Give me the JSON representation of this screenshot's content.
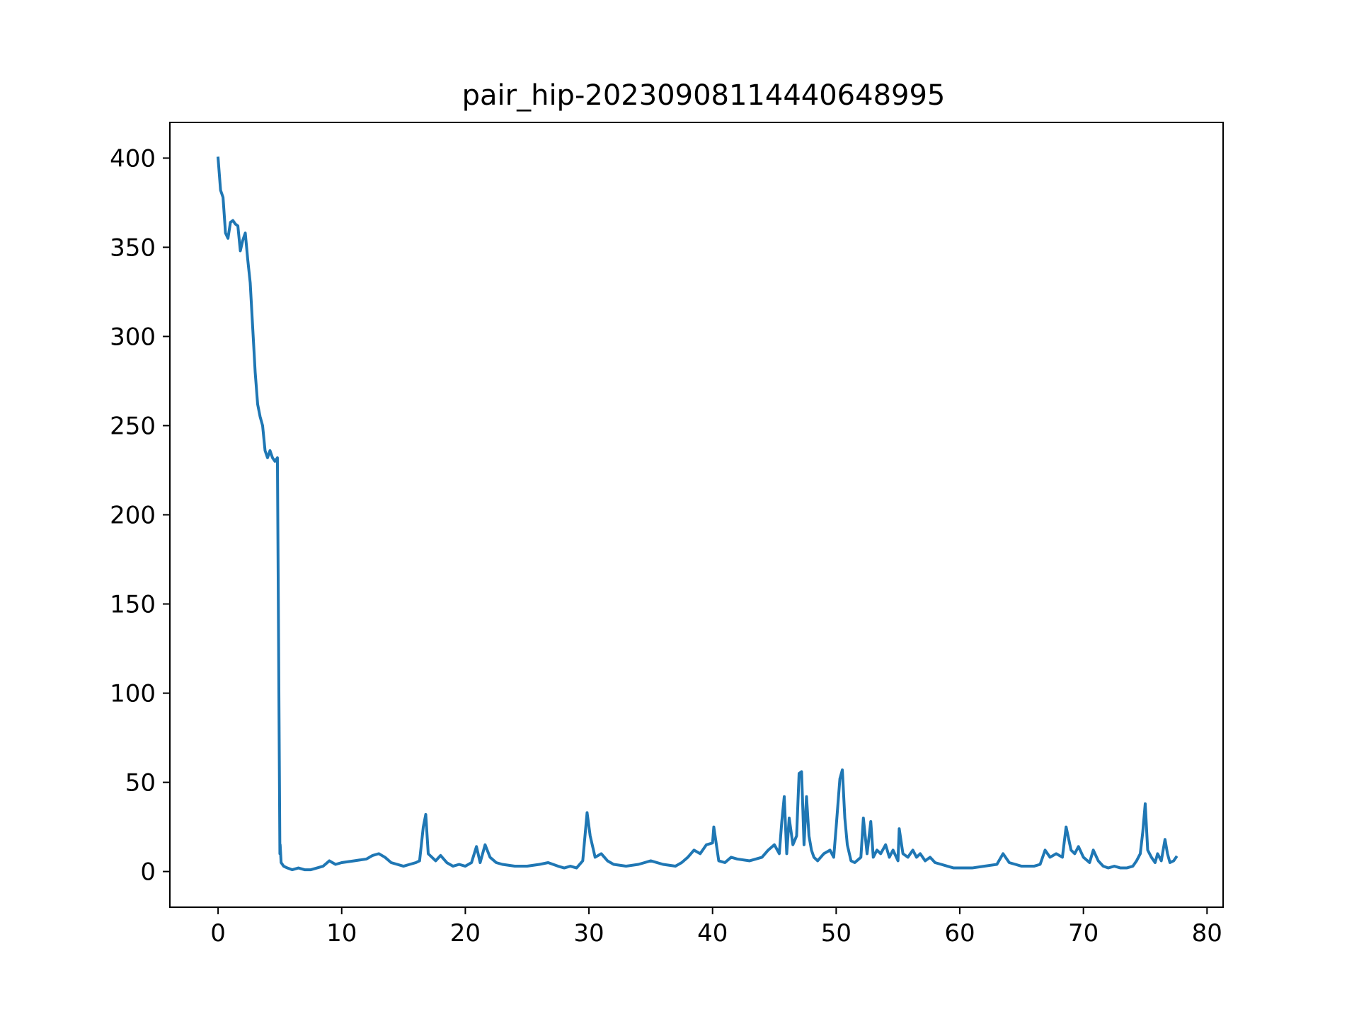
{
  "chart_data": {
    "type": "line",
    "title": "pair_hip-20230908114440648995",
    "xlabel": "",
    "ylabel": "",
    "xlim": [
      -3.9,
      81.3
    ],
    "ylim": [
      -20,
      420
    ],
    "xticks": [
      0,
      10,
      20,
      30,
      40,
      50,
      60,
      70,
      80
    ],
    "yticks": [
      0,
      50,
      100,
      150,
      200,
      250,
      300,
      350,
      400
    ],
    "grid": false,
    "legend": "none",
    "series": [
      {
        "color": "#1f77b4",
        "x": [
          0,
          0.2,
          0.4,
          0.6,
          0.8,
          1.0,
          1.2,
          1.4,
          1.6,
          1.8,
          2.0,
          2.2,
          2.4,
          2.6,
          2.8,
          3.0,
          3.2,
          3.4,
          3.6,
          3.8,
          4.0,
          4.2,
          4.4,
          4.6,
          4.8,
          5.0,
          5.02,
          5.1,
          5.3,
          5.6,
          6.0,
          6.5,
          7.0,
          7.5,
          8.0,
          8.5,
          9.0,
          9.5,
          10.0,
          11.0,
          12.0,
          12.5,
          13.0,
          13.5,
          14.0,
          15.0,
          15.5,
          16.0,
          16.3,
          16.6,
          16.8,
          17.0,
          17.3,
          17.6,
          18.0,
          18.5,
          19.0,
          19.5,
          20.0,
          20.5,
          20.9,
          21.2,
          21.6,
          22.0,
          22.5,
          23.0,
          24.0,
          25.0,
          26.0,
          26.7,
          27.5,
          28.0,
          28.5,
          29.0,
          29.5,
          29.85,
          30.1,
          30.5,
          31.0,
          31.5,
          32.0,
          33.0,
          34.0,
          34.5,
          35.0,
          36.0,
          37.0,
          37.5,
          38.0,
          38.5,
          39.0,
          39.5,
          40.0,
          40.1,
          40.5,
          41.0,
          41.5,
          42.0,
          43.0,
          44.0,
          44.5,
          45.0,
          45.4,
          45.6,
          45.8,
          46.0,
          46.2,
          46.5,
          46.8,
          47.0,
          47.2,
          47.4,
          47.6,
          47.8,
          48.0,
          48.2,
          48.5,
          49.0,
          49.5,
          49.8,
          50.0,
          50.3,
          50.5,
          50.7,
          50.9,
          51.2,
          51.5,
          52.0,
          52.2,
          52.5,
          52.8,
          53.0,
          53.3,
          53.6,
          54.0,
          54.3,
          54.6,
          55.0,
          55.1,
          55.4,
          55.8,
          56.2,
          56.5,
          56.8,
          57.2,
          57.6,
          58.0,
          58.5,
          59.0,
          59.5,
          60.0,
          61.0,
          62.0,
          63.0,
          63.5,
          64.0,
          64.5,
          65.0,
          66.0,
          66.5,
          66.9,
          67.3,
          67.8,
          68.3,
          68.6,
          69.0,
          69.3,
          69.6,
          70.0,
          70.5,
          70.8,
          71.2,
          71.6,
          72.0,
          72.5,
          73.0,
          73.5,
          74.0,
          74.3,
          74.6,
          74.8,
          75.0,
          75.2,
          75.5,
          75.8,
          76.0,
          76.3,
          76.6,
          76.8,
          77.0,
          77.3,
          77.5
        ],
        "values": [
          400,
          382,
          378,
          358,
          355,
          364,
          365,
          363,
          362,
          348,
          354,
          358,
          343,
          330,
          305,
          280,
          262,
          255,
          250,
          236,
          232,
          236,
          232,
          230,
          232,
          10,
          15,
          5,
          3,
          2,
          1,
          2,
          1,
          1,
          2,
          3,
          6,
          4,
          5,
          6,
          7,
          9,
          10,
          8,
          5,
          3,
          4,
          5,
          6,
          25,
          32,
          10,
          8,
          6,
          9,
          5,
          3,
          4,
          3,
          5,
          14,
          5,
          15,
          8,
          5,
          4,
          3,
          3,
          4,
          5,
          3,
          2,
          3,
          2,
          6,
          33,
          20,
          8,
          10,
          6,
          4,
          3,
          4,
          5,
          6,
          4,
          3,
          5,
          8,
          12,
          10,
          15,
          16,
          25,
          6,
          5,
          8,
          7,
          6,
          8,
          12,
          15,
          10,
          28,
          42,
          10,
          30,
          15,
          20,
          55,
          56,
          15,
          42,
          20,
          12,
          8,
          6,
          10,
          12,
          8,
          25,
          52,
          57,
          30,
          15,
          6,
          5,
          8,
          30,
          10,
          28,
          8,
          12,
          10,
          15,
          8,
          12,
          6,
          24,
          10,
          8,
          12,
          8,
          10,
          6,
          8,
          5,
          4,
          3,
          2,
          2,
          2,
          3,
          4,
          10,
          5,
          4,
          3,
          3,
          4,
          12,
          8,
          10,
          8,
          25,
          12,
          10,
          14,
          8,
          5,
          12,
          6,
          3,
          2,
          3,
          2,
          2,
          3,
          6,
          10,
          22,
          38,
          12,
          8,
          5,
          10,
          6,
          18,
          10,
          5,
          6,
          8
        ]
      }
    ]
  }
}
